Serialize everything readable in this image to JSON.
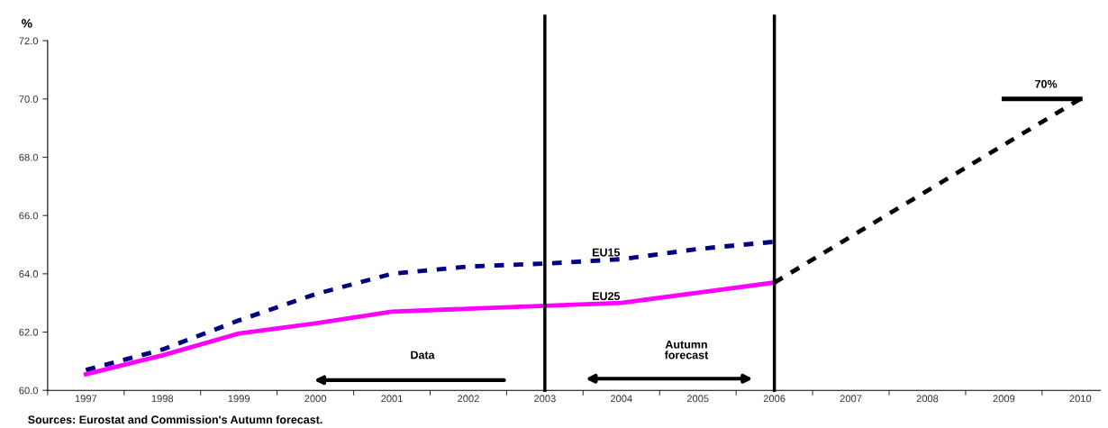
{
  "chart_data": {
    "type": "line",
    "ylabel": "%",
    "categories": [
      "1997",
      "1998",
      "1999",
      "2000",
      "2001",
      "2002",
      "2003",
      "2004",
      "2005",
      "2006",
      "2007",
      "2008",
      "2009",
      "2010"
    ],
    "series": [
      {
        "name": "EU15",
        "color": "#000080",
        "line_style": "dashed",
        "values": [
          60.7,
          61.4,
          62.4,
          63.3,
          64.0,
          64.25,
          64.35,
          64.5,
          64.85,
          65.1,
          null,
          null,
          null,
          null
        ]
      },
      {
        "name": "EU25",
        "color": "#ff00ff",
        "line_style": "solid",
        "values": [
          60.55,
          61.2,
          61.95,
          62.3,
          62.7,
          62.8,
          62.9,
          63.0,
          63.35,
          63.7,
          null,
          null,
          null,
          null
        ]
      },
      {
        "color": "#000000",
        "line_style": "dashed",
        "values": [
          null,
          null,
          null,
          null,
          null,
          null,
          null,
          null,
          null,
          63.7,
          null,
          null,
          null,
          70.0
        ]
      },
      {
        "color": "#000000",
        "line_style": "solid",
        "values": [
          null,
          null,
          null,
          null,
          null,
          null,
          null,
          null,
          null,
          null,
          null,
          null,
          70.0,
          70.0
        ]
      }
    ],
    "ylim": [
      60,
      72
    ],
    "yticks": [
      {
        "value": 60,
        "label": "60.0"
      },
      {
        "value": 62,
        "label": "62.0"
      },
      {
        "value": 64,
        "label": "64.0"
      },
      {
        "value": 66,
        "label": "66.0"
      },
      {
        "value": 68,
        "label": "68.0"
      },
      {
        "value": 70,
        "label": "70.0"
      },
      {
        "value": 72,
        "label": "72.0"
      }
    ],
    "ref_lines": [
      {
        "axis": "x",
        "value": "2003",
        "color": "#000000"
      },
      {
        "axis": "x",
        "value": "2006",
        "color": "#000000"
      }
    ],
    "annotations": [
      {
        "text": "70%",
        "x": "2010",
        "y": 70.0
      },
      "Data",
      "Autumn\nforecast",
      "Sources: Eurostat and Commission's Autumn forecast."
    ],
    "grid": false,
    "marker": "none"
  }
}
